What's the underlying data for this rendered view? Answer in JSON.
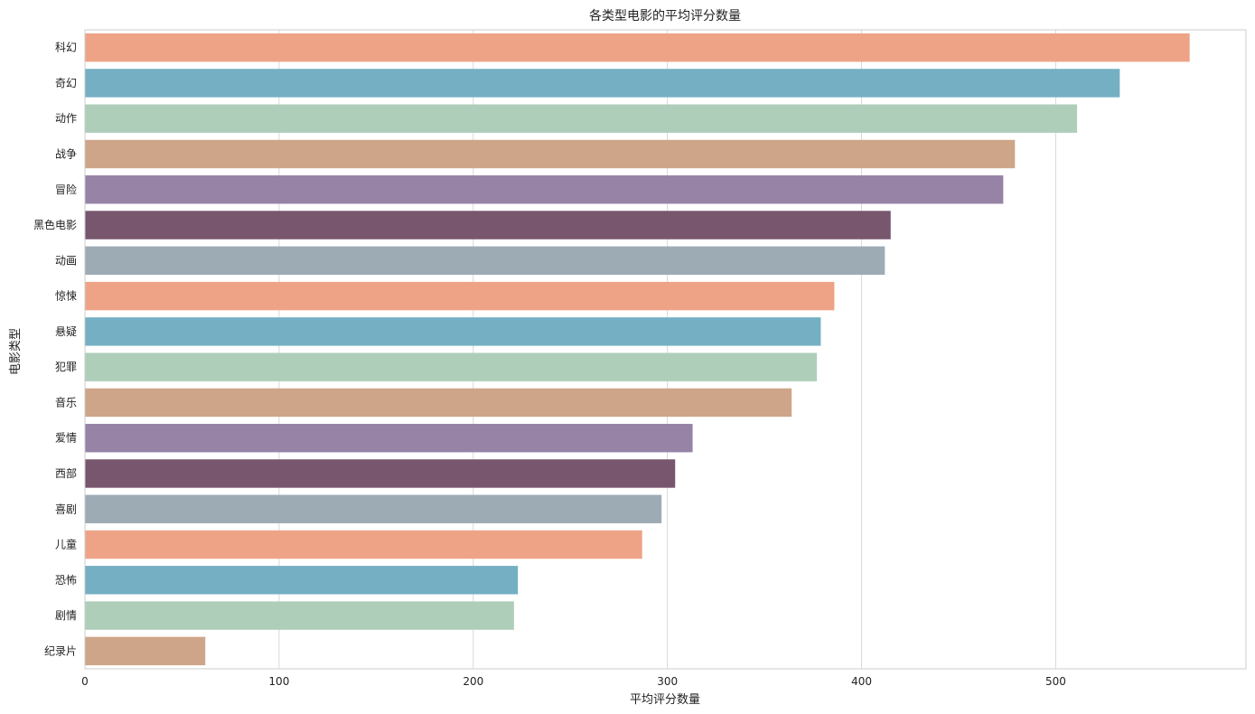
{
  "chart_data": {
    "type": "bar",
    "orientation": "horizontal",
    "title": "各类型电影的平均评分数量",
    "xlabel": "平均评分数量",
    "ylabel": "电影类型",
    "xlim": [
      0,
      598
    ],
    "xticks": [
      0,
      100,
      200,
      300,
      400,
      500
    ],
    "grid": true,
    "categories": [
      "科幻",
      "奇幻",
      "动作",
      "战争",
      "冒险",
      "黑色电影",
      "动画",
      "惊悚",
      "悬疑",
      "犯罪",
      "音乐",
      "爱情",
      "西部",
      "喜剧",
      "儿童",
      "恐怖",
      "剧情",
      "纪录片"
    ],
    "values": [
      569,
      533,
      511,
      479,
      473,
      415,
      412,
      386,
      379,
      377,
      364,
      313,
      304,
      297,
      287,
      223,
      221,
      62
    ],
    "colors": [
      "#EFA386",
      "#75AFC3",
      "#AECEBA",
      "#CEA588",
      "#9683A6",
      "#77566E",
      "#9DABB5",
      "#EFA386",
      "#75AFC3",
      "#AECEBA",
      "#CEA588",
      "#9683A6",
      "#77566E",
      "#9DABB5",
      "#EFA386",
      "#75AFC3",
      "#AECEBA",
      "#CEA588"
    ]
  }
}
